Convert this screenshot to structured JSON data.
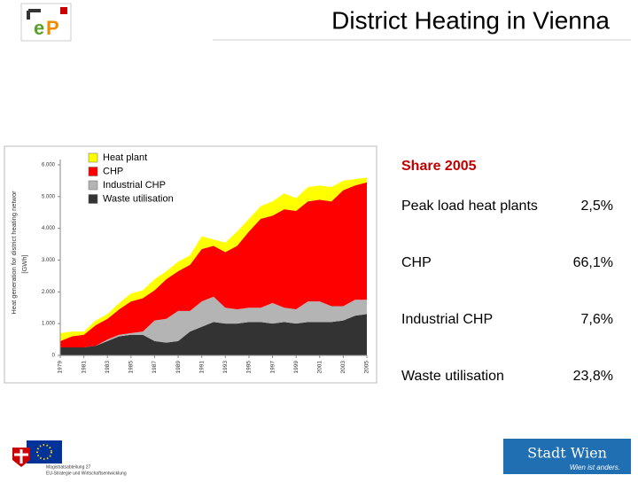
{
  "header": {
    "title": "District Heating in Vienna"
  },
  "chart_data": {
    "type": "stacked_area",
    "ylabel": "Heat generation for district heating networ",
    "ylabel_unit": "[GWh]",
    "x": [
      1979,
      1980,
      1981,
      1982,
      1983,
      1984,
      1985,
      1986,
      1987,
      1988,
      1989,
      1990,
      1991,
      1992,
      1993,
      1994,
      1995,
      1996,
      1997,
      1998,
      1999,
      2000,
      2001,
      2002,
      2003,
      2004,
      2005
    ],
    "xlim": [
      1979,
      2005
    ],
    "xticks": [
      1979,
      1981,
      1983,
      1985,
      1987,
      1989,
      1991,
      1993,
      1995,
      1997,
      1999,
      2001,
      2003,
      2005
    ],
    "ylim": [
      0,
      6000
    ],
    "yticks": [
      0,
      {
        "value": 1000,
        "label": "1.000"
      },
      {
        "value": 2000,
        "label": "2.000"
      },
      {
        "value": 3000,
        "label": "3.000"
      },
      {
        "value": 4000,
        "label": "4.000"
      },
      {
        "value": 5000,
        "label": "5.000"
      },
      {
        "value": 6000,
        "label": "6.000"
      }
    ],
    "legend": "top-left",
    "series": [
      {
        "name": "Heat plant",
        "color": "#ffff00",
        "values": [
          250,
          150,
          100,
          150,
          150,
          200,
          250,
          250,
          350,
          250,
          300,
          300,
          400,
          200,
          300,
          450,
          400,
          400,
          450,
          500,
          400,
          450,
          450,
          450,
          300,
          200,
          150
        ]
      },
      {
        "name": "CHP",
        "color": "#ff0000",
        "values": [
          200,
          350,
          400,
          650,
          650,
          800,
          1000,
          1050,
          950,
          1250,
          1250,
          1450,
          1650,
          1600,
          1750,
          2000,
          2400,
          2800,
          2750,
          3100,
          3100,
          3150,
          3200,
          3300,
          3650,
          3600,
          3700
        ]
      },
      {
        "name": "Industrial CHP",
        "color": "#b4b4b4",
        "values": [
          0,
          0,
          0,
          0,
          50,
          50,
          50,
          100,
          650,
          750,
          950,
          650,
          800,
          800,
          500,
          450,
          450,
          450,
          650,
          450,
          450,
          650,
          650,
          500,
          450,
          500,
          450
        ]
      },
      {
        "name": "Waste utilisation",
        "color": "#333333",
        "values": [
          250,
          250,
          250,
          300,
          450,
          600,
          650,
          650,
          450,
          400,
          450,
          750,
          900,
          1050,
          1000,
          1000,
          1050,
          1050,
          1000,
          1050,
          1000,
          1050,
          1050,
          1050,
          1100,
          1250,
          1300
        ]
      }
    ]
  },
  "share_table": {
    "title": "Share 2005",
    "rows": [
      [
        "Peak load heat plants",
        "2,5%"
      ],
      [
        "CHP",
        "66,1%"
      ],
      [
        "Industrial CHP",
        "7,6%"
      ],
      [
        "Waste utilisation",
        "23,8%"
      ]
    ]
  },
  "footer": {
    "department": [
      "Magistratsabteilung 27",
      "EU-Strategie und Wirtschaftsentwicklung"
    ],
    "brand": "Stadt Wien",
    "slogan": "Wien ist anders."
  }
}
